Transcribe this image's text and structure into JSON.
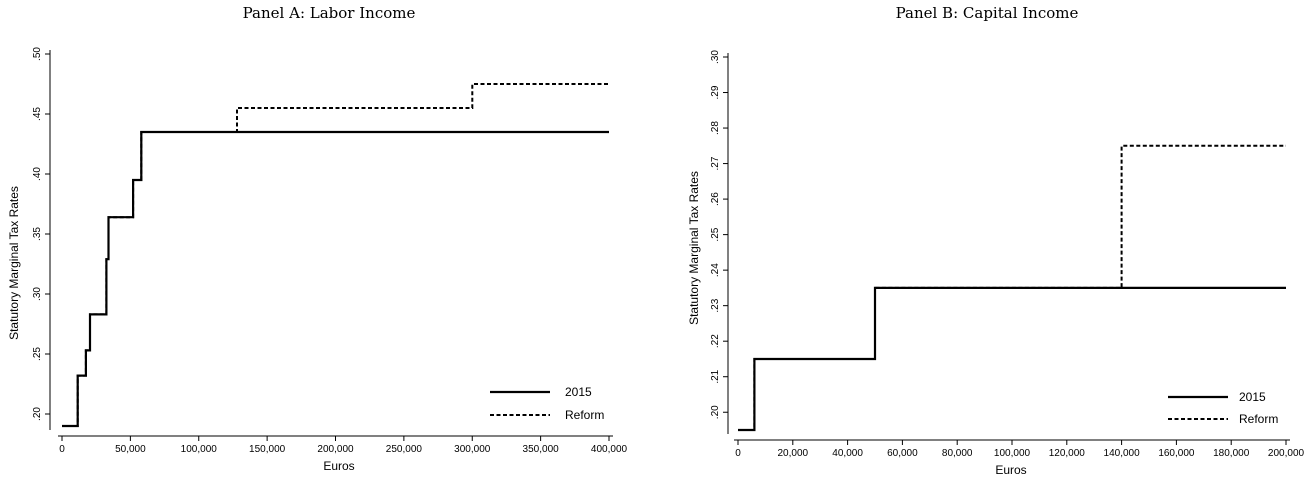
{
  "chart_data": [
    {
      "type": "line",
      "step": true,
      "title": "Panel A: Labor Income",
      "xlabel": "Euros",
      "ylabel": "Statutory Marginal Tax Rates",
      "xlim": [
        0,
        400000
      ],
      "ylim": [
        0.19,
        0.5
      ],
      "xticks": [
        0,
        50000,
        100000,
        150000,
        200000,
        250000,
        300000,
        350000,
        400000
      ],
      "xtick_labels": [
        "0",
        "50,000",
        "100,000",
        "150,000",
        "200,000",
        "250,000",
        "300,000",
        "350,000",
        "400,000"
      ],
      "yticks": [
        0.2,
        0.25,
        0.3,
        0.35,
        0.4,
        0.45,
        0.5
      ],
      "ytick_labels": [
        ".20",
        ".25",
        ".30",
        ".35",
        ".40",
        ".45",
        ".50"
      ],
      "grid": false,
      "legend_position": "bottom-right",
      "series": [
        {
          "name": "2015",
          "style": "solid",
          "x": [
            0,
            11500,
            11500,
            17500,
            17500,
            20500,
            20500,
            32500,
            32500,
            34000,
            34000,
            52000,
            52000,
            58000,
            58000,
            400000
          ],
          "y": [
            0.19,
            0.19,
            0.232,
            0.232,
            0.253,
            0.253,
            0.283,
            0.283,
            0.329,
            0.329,
            0.364,
            0.364,
            0.395,
            0.395,
            0.435,
            0.435
          ]
        },
        {
          "name": "Reform",
          "style": "dashed",
          "x": [
            0,
            11500,
            11500,
            17500,
            17500,
            20500,
            20500,
            32500,
            32500,
            34000,
            34000,
            52000,
            52000,
            58000,
            58000,
            128000,
            128000,
            300000,
            300000,
            400000
          ],
          "y": [
            0.19,
            0.19,
            0.232,
            0.232,
            0.253,
            0.253,
            0.283,
            0.283,
            0.329,
            0.329,
            0.364,
            0.364,
            0.395,
            0.395,
            0.435,
            0.435,
            0.455,
            0.455,
            0.475,
            0.475
          ]
        }
      ]
    },
    {
      "type": "line",
      "step": true,
      "title": "Panel B: Capital Income",
      "xlabel": "Euros",
      "ylabel": "Statutory Marginal Tax Rates",
      "xlim": [
        0,
        200000
      ],
      "ylim": [
        0.195,
        0.3
      ],
      "xticks": [
        0,
        20000,
        40000,
        60000,
        80000,
        100000,
        120000,
        140000,
        160000,
        180000,
        200000
      ],
      "xtick_labels": [
        "0",
        "20,000",
        "40,000",
        "60,000",
        "80,000",
        "100,000",
        "120,000",
        "140,000",
        "160,000",
        "180,000",
        "200,000"
      ],
      "yticks": [
        0.2,
        0.21,
        0.22,
        0.23,
        0.24,
        0.25,
        0.26,
        0.27,
        0.28,
        0.29,
        0.3
      ],
      "ytick_labels": [
        ".20",
        ".21",
        ".22",
        ".23",
        ".24",
        ".25",
        ".26",
        ".27",
        ".28",
        ".29",
        ".30"
      ],
      "grid": false,
      "legend_position": "bottom-right",
      "series": [
        {
          "name": "2015",
          "style": "solid",
          "x": [
            0,
            6000,
            6000,
            50000,
            50000,
            200000
          ],
          "y": [
            0.195,
            0.195,
            0.215,
            0.215,
            0.235,
            0.235
          ]
        },
        {
          "name": "Reform",
          "style": "dashed",
          "x": [
            0,
            6000,
            6000,
            50000,
            50000,
            140000,
            140000,
            200000
          ],
          "y": [
            0.195,
            0.195,
            0.215,
            0.215,
            0.235,
            0.235,
            0.275,
            0.275
          ]
        }
      ]
    }
  ]
}
